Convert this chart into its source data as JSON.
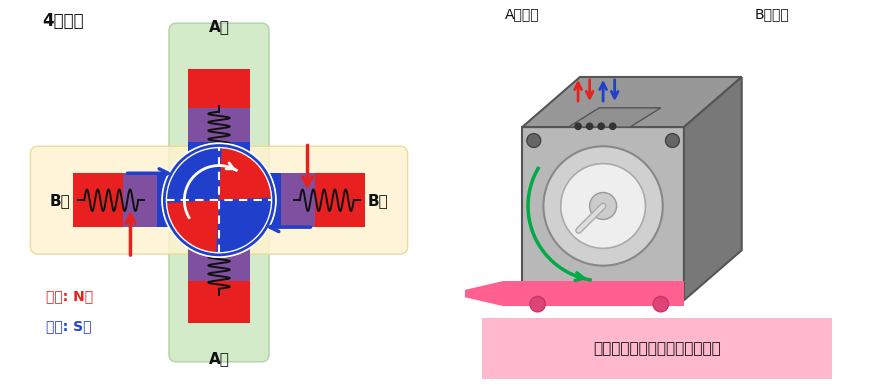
{
  "title_left": "4极电机",
  "label_A_top": "A相",
  "label_A_bottom": "A相",
  "label_B_left": "B相",
  "label_B_right": "B相",
  "legend_red": "红色: N极",
  "legend_blue": "蓝色: S极",
  "label_A_input": "A相输入",
  "label_B_input": "B相输入",
  "caption": "转子转动并连续执行步进操作。",
  "bg_color": "#ffffff",
  "green_bg": "#cce8c0",
  "yellow_bg": "#fef3d0",
  "red_color": "#e82020",
  "blue_color": "#2040cc",
  "pink_color": "#ff6090",
  "green_arrow": "#00aa44",
  "caption_bg": "#ffb8cc",
  "purple_color": "#8040a0",
  "motor_light": "#c0c0c0",
  "motor_mid": "#909090",
  "motor_dark": "#686868"
}
